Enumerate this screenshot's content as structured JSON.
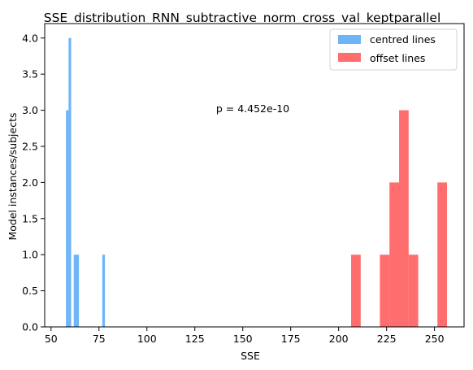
{
  "chart_data": {
    "type": "histogram",
    "title": "SSE_distribution_RNN_subtractive_norm_cross_val_keptparallel",
    "xlabel": "SSE",
    "ylabel": "Model instances/subjects",
    "xlim": [
      46.7,
      265.4
    ],
    "ylim": [
      0,
      4.2
    ],
    "x_ticks": [
      50,
      75,
      100,
      125,
      150,
      175,
      200,
      225,
      250
    ],
    "y_ticks": [
      0.0,
      0.5,
      1.0,
      1.5,
      2.0,
      2.5,
      3.0,
      3.5,
      4.0
    ],
    "x_tick_labels": [
      "50",
      "75",
      "100",
      "125",
      "150",
      "175",
      "200",
      "225",
      "250"
    ],
    "y_tick_labels": [
      "0.0",
      "0.5",
      "1.0",
      "1.5",
      "2.0",
      "2.5",
      "3.0",
      "3.5",
      "4.0"
    ],
    "grid": false,
    "legend_position": "top-right",
    "annotation": "p = 4.452e-10",
    "annotation_position": {
      "x": 157.5,
      "y": 3.0
    },
    "series": [
      {
        "name": "centred lines",
        "color": "#1f8ef1",
        "bin_width": 1.35,
        "bins": [
          {
            "x0": 57.8,
            "count": 3
          },
          {
            "x0": 59.15,
            "count": 4
          },
          {
            "x0": 60.5,
            "count": 0
          },
          {
            "x0": 61.85,
            "count": 1
          },
          {
            "x0": 63.2,
            "count": 1
          },
          {
            "x0": 76.75,
            "count": 1
          }
        ]
      },
      {
        "name": "offset lines",
        "color": "#ff2020",
        "bin_width": 5.0,
        "bins": [
          {
            "x0": 206.5,
            "count": 1
          },
          {
            "x0": 221.5,
            "count": 1
          },
          {
            "x0": 226.5,
            "count": 2
          },
          {
            "x0": 231.5,
            "count": 3
          },
          {
            "x0": 236.5,
            "count": 1
          },
          {
            "x0": 251.5,
            "count": 2
          }
        ]
      }
    ]
  }
}
